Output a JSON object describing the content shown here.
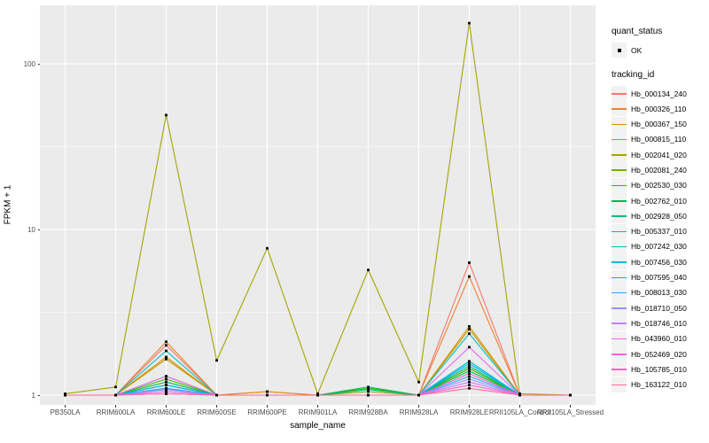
{
  "chart_data": {
    "type": "line",
    "xlabel": "sample_name",
    "ylabel": "FPKM + 1",
    "y_scale": "log10",
    "ylim": [
      1,
      200
    ],
    "grid": "on",
    "panel_bg": "#EBEBEB",
    "grid_color": "#FFFFFF",
    "point_color": "#000000",
    "y_ticks": [
      {
        "label": "1",
        "value": 1
      },
      {
        "label": "10",
        "value": 10
      },
      {
        "label": "100",
        "value": 100
      }
    ],
    "categories": [
      "PB350LA",
      "RRIM600LA",
      "RRIM600LE",
      "RRIM600SE",
      "RRIM600PE",
      "RRIM901LA",
      "RRIM928BA",
      "RRIM928LA",
      "RRIM928LE",
      "RRII105LA_Control",
      "RRII105LA_Stressed"
    ],
    "series": [
      {
        "name": "Hb_000134_240",
        "color": "#F8766D",
        "values": [
          1,
          1,
          2.0,
          1,
          1,
          1,
          1,
          1,
          6.3,
          1,
          1
        ]
      },
      {
        "name": "Hb_000326_110",
        "color": "#EA8331",
        "values": [
          1,
          1,
          2.1,
          1,
          1.05,
          1,
          1,
          1,
          5.2,
          1,
          1
        ]
      },
      {
        "name": "Hb_000367_150",
        "color": "#D89000",
        "values": [
          1,
          1,
          1.7,
          1,
          1.05,
          1,
          1,
          1,
          2.6,
          1,
          1
        ]
      },
      {
        "name": "Hb_000815_110",
        "color": "#C09B00",
        "values": [
          1,
          1,
          1.65,
          1,
          1,
          1,
          1,
          1,
          2.5,
          1,
          1
        ]
      },
      {
        "name": "Hb_002041_020",
        "color": "#A3A500",
        "values": [
          1.02,
          1.12,
          49,
          1.62,
          7.7,
          1.02,
          5.7,
          1.2,
          176,
          1.02,
          1
        ]
      },
      {
        "name": "Hb_002081_240",
        "color": "#7CAE00",
        "values": [
          1,
          1,
          1.3,
          1,
          1,
          1,
          1.05,
          1,
          1.45,
          1,
          1
        ]
      },
      {
        "name": "Hb_002530_030",
        "color": "#39B600",
        "values": [
          1,
          1,
          1.25,
          1,
          1,
          1,
          1.1,
          1,
          1.45,
          1,
          1
        ]
      },
      {
        "name": "Hb_002762_010",
        "color": "#00BB4E",
        "values": [
          1,
          1,
          1.2,
          1,
          1,
          1,
          1.12,
          1,
          1.4,
          1,
          1
        ]
      },
      {
        "name": "Hb_002928_050",
        "color": "#00BF7D",
        "values": [
          1,
          1,
          1.15,
          1,
          1,
          1,
          1.08,
          1,
          1.5,
          1,
          1
        ]
      },
      {
        "name": "Hb_005337_010",
        "color": "#00C1A3",
        "values": [
          1,
          1,
          1.1,
          1,
          1,
          1,
          1,
          1,
          1.6,
          1,
          1
        ]
      },
      {
        "name": "Hb_007242_030",
        "color": "#00BFC4",
        "values": [
          1,
          1,
          1.85,
          1,
          1,
          1,
          1,
          1,
          2.35,
          1,
          1
        ]
      },
      {
        "name": "Hb_007456_030",
        "color": "#00BAE0",
        "values": [
          1,
          1,
          1.15,
          1,
          1,
          1,
          1,
          1,
          1.6,
          1,
          1
        ]
      },
      {
        "name": "Hb_007595_040",
        "color": "#00B0F6",
        "values": [
          1,
          1,
          1.1,
          1,
          1,
          1,
          1,
          1,
          1.55,
          1,
          1
        ]
      },
      {
        "name": "Hb_008013_030",
        "color": "#35A2FF",
        "values": [
          1,
          1,
          1.1,
          1,
          1,
          1,
          1,
          1,
          1.3,
          1,
          1
        ]
      },
      {
        "name": "Hb_018710_050",
        "color": "#9590FF",
        "values": [
          1,
          1,
          1.08,
          1,
          1,
          1,
          1,
          1,
          1.25,
          1,
          1
        ]
      },
      {
        "name": "Hb_018746_010",
        "color": "#C77CFF",
        "values": [
          1,
          1,
          1.05,
          1,
          1,
          1,
          1,
          1,
          1.2,
          1,
          1
        ]
      },
      {
        "name": "Hb_043960_010",
        "color": "#E76BF3",
        "values": [
          1,
          1,
          1.3,
          1,
          1,
          1,
          1,
          1,
          1.95,
          1,
          1
        ]
      },
      {
        "name": "Hb_052469_020",
        "color": "#FA62DB",
        "values": [
          1,
          1,
          1.05,
          1,
          1,
          1,
          1,
          1,
          1.15,
          1,
          1
        ]
      },
      {
        "name": "Hb_105785_010",
        "color": "#FF62BC",
        "values": [
          1,
          1,
          1.02,
          1,
          1,
          1,
          1,
          1,
          1.35,
          1,
          1
        ]
      },
      {
        "name": "Hb_163122_010",
        "color": "#FF6A98",
        "values": [
          1,
          1,
          1.02,
          1,
          1,
          1,
          1,
          1,
          1.1,
          1,
          1
        ]
      }
    ],
    "legend": {
      "position": "right",
      "quant_status_title": "quant_status",
      "quant_status_items": [
        {
          "label": "OK"
        }
      ],
      "tracking_id_title": "tracking_id"
    }
  }
}
